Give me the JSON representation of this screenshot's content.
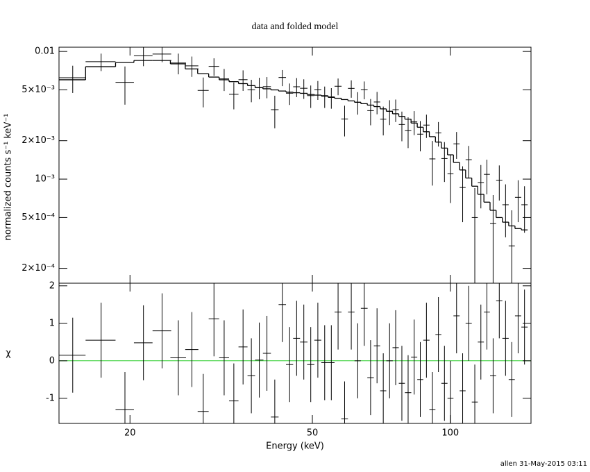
{
  "footer": "allen 31-May-2015 03:11",
  "chart_data": [
    {
      "type": "errorbar-log",
      "title": "data and folded model",
      "ylabel": "normalized counts s⁻¹ keV⁻¹",
      "xlim": [
        14,
        150
      ],
      "ylim": [
        0.000153,
        0.0108
      ],
      "xlog": true,
      "ylog": true,
      "yticks": [
        0.01,
        {
          "value": 0.005,
          "label": "5×10⁻³"
        },
        {
          "value": 0.002,
          "label": "2×10⁻³"
        },
        {
          "value": 0.001,
          "label": "10⁻³"
        },
        {
          "value": 0.0005,
          "label": "5×10⁻⁴"
        },
        {
          "value": 0.0002,
          "label": "2×10⁻⁴"
        }
      ],
      "x": [
        15.0,
        17.3,
        19.5,
        21.4,
        23.5,
        25.5,
        27.3,
        28.9,
        30.5,
        32.1,
        33.7,
        35.3,
        36.8,
        38.3,
        39.8,
        41.4,
        43.0,
        44.6,
        46.2,
        47.9,
        49.6,
        51.4,
        53.2,
        55.0,
        56.9,
        58.8,
        60.8,
        62.8,
        64.9,
        67.0,
        69.2,
        71.4,
        73.7,
        76.0,
        78.4,
        80.9,
        83.4,
        86.0,
        88.7,
        91.4,
        94.2,
        97.1,
        100.1,
        103.2,
        106.4,
        109.7,
        113.1,
        116.6,
        120.2,
        124.0,
        127.9,
        132.0,
        136.2,
        140.6,
        145.2
      ],
      "xerr": [
        1.0,
        1.3,
        0.9,
        1.0,
        1.1,
        1.0,
        0.9,
        0.8,
        0.8,
        0.8,
        0.8,
        0.8,
        0.7,
        0.8,
        0.8,
        0.8,
        0.8,
        0.8,
        0.8,
        0.9,
        0.9,
        0.9,
        0.9,
        0.9,
        1.0,
        1.0,
        1.0,
        1.0,
        1.1,
        1.1,
        1.1,
        1.1,
        1.2,
        1.2,
        1.2,
        1.3,
        1.3,
        1.3,
        1.4,
        1.4,
        1.4,
        1.5,
        1.5,
        1.6,
        1.6,
        1.7,
        1.7,
        1.8,
        1.8,
        1.9,
        2.0,
        2.1,
        2.1,
        2.2,
        2.3
      ],
      "series": [
        {
          "name": "data",
          "color": "#000000",
          "values": [
            0.00623,
            0.00832,
            0.00573,
            0.00927,
            0.00954,
            0.00812,
            0.00772,
            0.00495,
            0.00764,
            0.0061,
            0.00462,
            0.00601,
            0.005,
            0.00522,
            0.0053,
            0.0035,
            0.00625,
            0.00471,
            0.00529,
            0.00515,
            0.00451,
            0.00502,
            0.00446,
            0.00436,
            0.00534,
            0.00296,
            0.00514,
            0.004,
            0.00502,
            0.00344,
            0.00402,
            0.00295,
            0.0034,
            0.0035,
            0.00268,
            0.0024,
            0.00281,
            0.00225,
            0.00265,
            0.00144,
            0.0023,
            0.00145,
            0.0011,
            0.00189,
            0.00086,
            0.00142,
            0.0005,
            0.00094,
            0.00109,
            0.00045,
            0.00098,
            0.00063,
            0.0003,
            0.00072,
            0.00063
          ],
          "errors": [
            0.0015,
            0.0013,
            0.0019,
            0.0016,
            0.0013,
            0.0015,
            0.0014,
            0.0013,
            0.0012,
            0.0012,
            0.0011,
            0.0011,
            0.001,
            0.001,
            0.001,
            0.001,
            0.0009,
            0.0009,
            0.0009,
            0.0009,
            0.0009,
            0.00085,
            0.00085,
            0.0008,
            0.0008,
            0.0008,
            0.0008,
            0.0008,
            0.0008,
            0.0008,
            0.0008,
            0.00075,
            0.00075,
            0.0007,
            0.0007,
            0.00065,
            0.0006,
            0.0006,
            0.00055,
            0.00055,
            0.0005,
            0.0005,
            0.00045,
            0.00045,
            0.0004,
            0.0004,
            0.00035,
            0.00035,
            0.00033,
            0.0003,
            0.0003,
            0.00028,
            0.00027,
            0.00026,
            0.00025
          ]
        },
        {
          "name": "model",
          "color": "#000000",
          "values": [
            0.006,
            0.0076,
            0.0082,
            0.0085,
            0.0085,
            0.008,
            0.0073,
            0.0067,
            0.0063,
            0.006,
            0.0058,
            0.0056,
            0.0054,
            0.0052,
            0.0051,
            0.005,
            0.0049,
            0.0048,
            0.00475,
            0.0047,
            0.0046,
            0.00455,
            0.0045,
            0.0044,
            0.0043,
            0.0042,
            0.0041,
            0.004,
            0.0039,
            0.0038,
            0.0037,
            0.00355,
            0.0034,
            0.00325,
            0.0031,
            0.00295,
            0.00275,
            0.00255,
            0.00235,
            0.00215,
            0.00195,
            0.00175,
            0.00155,
            0.00135,
            0.00118,
            0.00102,
            0.00088,
            0.00076,
            0.00066,
            0.00057,
            0.0005,
            0.00046,
            0.00043,
            0.00041,
            0.0004
          ]
        }
      ]
    },
    {
      "type": "residual",
      "xlabel": "Energy (keV)",
      "ylabel": "χ",
      "xlim": [
        14,
        150
      ],
      "ylim": [
        -1.67,
        2.07
      ],
      "xlog": true,
      "xticks": [
        20,
        50,
        100
      ],
      "yticks": [
        -1,
        0,
        1,
        2
      ],
      "hline": 0,
      "hline_color": "#22cc22",
      "color": "#000000",
      "values": [
        0.15,
        0.55,
        -1.3,
        0.48,
        0.8,
        0.08,
        0.3,
        -1.35,
        1.12,
        0.08,
        -1.07,
        0.37,
        -0.4,
        0.02,
        0.2,
        -1.5,
        1.5,
        -0.1,
        0.6,
        0.5,
        -0.1,
        0.55,
        -0.05,
        -0.05,
        1.3,
        -1.55,
        1.3,
        0.0,
        1.4,
        -0.45,
        0.4,
        -0.8,
        0.0,
        0.35,
        -0.6,
        -0.85,
        0.1,
        -0.5,
        0.55,
        -1.3,
        0.7,
        -0.6,
        -1.0,
        1.2,
        -0.8,
        1.0,
        -1.1,
        0.5,
        1.3,
        -0.4,
        1.6,
        0.6,
        -0.5,
        1.2,
        0.9
      ],
      "errors": [
        1,
        1,
        1,
        1,
        1,
        1,
        1,
        1,
        1,
        1,
        1,
        1,
        1,
        1,
        1,
        1,
        1,
        1,
        1,
        1,
        1,
        1,
        1,
        1,
        1,
        1,
        1,
        1,
        1,
        1,
        1,
        1,
        1,
        1,
        1,
        1,
        1,
        1,
        1,
        1,
        1,
        1,
        1,
        1,
        1,
        1,
        1,
        1,
        1,
        1,
        1,
        1,
        1,
        1,
        1
      ]
    }
  ]
}
